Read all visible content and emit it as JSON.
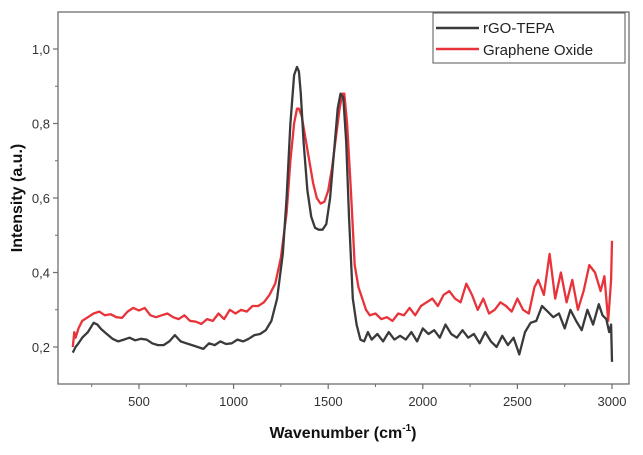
{
  "chart_data": {
    "type": "line",
    "title": "",
    "xlabel": "Wavenumber (cm",
    "xlabel_superscript": "-1",
    "xlabel_suffix": ")",
    "ylabel": "Intensity (a.u.)",
    "xlim": [
      155,
      3060
    ],
    "ylim": [
      0.1,
      1.1
    ],
    "xticks": [
      500,
      1000,
      1500,
      2000,
      2500,
      3000
    ],
    "xtick_labels": [
      "500",
      "1000",
      "1500",
      "2000",
      "2500",
      "3000"
    ],
    "yticks": [
      0.2,
      0.4,
      0.6,
      0.8,
      1.0
    ],
    "ytick_labels": [
      "0,2",
      "0,4",
      "0,6",
      "0,8",
      "1,0"
    ],
    "grid": false,
    "legend_position": "top-right",
    "series": [
      {
        "name": "rGO-TEPA",
        "color": "#3a3a3a",
        "x": [
          150,
          165,
          180,
          200,
          230,
          260,
          280,
          300,
          330,
          360,
          390,
          420,
          450,
          480,
          510,
          540,
          570,
          600,
          630,
          660,
          690,
          720,
          750,
          780,
          810,
          840,
          870,
          900,
          930,
          960,
          990,
          1020,
          1050,
          1080,
          1110,
          1140,
          1170,
          1200,
          1230,
          1260,
          1280,
          1300,
          1320,
          1335,
          1345,
          1355,
          1370,
          1390,
          1410,
          1430,
          1450,
          1470,
          1490,
          1510,
          1530,
          1550,
          1565,
          1580,
          1595,
          1610,
          1630,
          1650,
          1670,
          1690,
          1710,
          1730,
          1760,
          1790,
          1820,
          1850,
          1880,
          1910,
          1940,
          1970,
          2000,
          2030,
          2060,
          2090,
          2120,
          2150,
          2180,
          2210,
          2240,
          2270,
          2300,
          2330,
          2360,
          2390,
          2420,
          2450,
          2480,
          2510,
          2540,
          2570,
          2600,
          2630,
          2660,
          2690,
          2720,
          2750,
          2780,
          2810,
          2840,
          2870,
          2900,
          2930,
          2950,
          2970,
          2985,
          2995,
          3000
        ],
        "y": [
          0.185,
          0.2,
          0.21,
          0.225,
          0.24,
          0.265,
          0.26,
          0.248,
          0.235,
          0.222,
          0.215,
          0.22,
          0.225,
          0.218,
          0.222,
          0.22,
          0.21,
          0.205,
          0.205,
          0.215,
          0.232,
          0.215,
          0.21,
          0.205,
          0.2,
          0.195,
          0.21,
          0.205,
          0.215,
          0.208,
          0.21,
          0.22,
          0.215,
          0.222,
          0.232,
          0.235,
          0.245,
          0.27,
          0.33,
          0.45,
          0.6,
          0.8,
          0.93,
          0.952,
          0.94,
          0.88,
          0.75,
          0.62,
          0.55,
          0.52,
          0.515,
          0.515,
          0.53,
          0.6,
          0.72,
          0.84,
          0.88,
          0.87,
          0.75,
          0.55,
          0.33,
          0.26,
          0.22,
          0.215,
          0.24,
          0.22,
          0.235,
          0.215,
          0.24,
          0.22,
          0.23,
          0.22,
          0.24,
          0.215,
          0.25,
          0.235,
          0.245,
          0.225,
          0.26,
          0.235,
          0.225,
          0.245,
          0.225,
          0.235,
          0.21,
          0.24,
          0.215,
          0.2,
          0.23,
          0.205,
          0.225,
          0.18,
          0.24,
          0.265,
          0.27,
          0.31,
          0.295,
          0.28,
          0.29,
          0.25,
          0.3,
          0.27,
          0.245,
          0.3,
          0.26,
          0.315,
          0.285,
          0.275,
          0.24,
          0.26,
          0.16
        ]
      },
      {
        "name": "Graphene Oxide",
        "color": "#e8333a",
        "x": [
          150,
          158,
          165,
          180,
          200,
          230,
          260,
          290,
          320,
          350,
          380,
          410,
          440,
          470,
          500,
          530,
          560,
          590,
          620,
          650,
          680,
          710,
          740,
          770,
          800,
          830,
          860,
          890,
          920,
          950,
          980,
          1010,
          1040,
          1070,
          1100,
          1130,
          1160,
          1190,
          1220,
          1250,
          1280,
          1300,
          1320,
          1335,
          1345,
          1360,
          1380,
          1400,
          1420,
          1440,
          1460,
          1480,
          1500,
          1520,
          1540,
          1560,
          1575,
          1585,
          1600,
          1620,
          1640,
          1660,
          1680,
          1700,
          1720,
          1750,
          1780,
          1810,
          1840,
          1870,
          1900,
          1930,
          1960,
          1990,
          2020,
          2050,
          2080,
          2110,
          2140,
          2170,
          2200,
          2230,
          2260,
          2290,
          2320,
          2350,
          2380,
          2410,
          2440,
          2470,
          2500,
          2530,
          2560,
          2590,
          2610,
          2640,
          2670,
          2700,
          2730,
          2760,
          2790,
          2820,
          2850,
          2880,
          2910,
          2940,
          2960,
          2980,
          2995,
          3000
        ],
        "y": [
          0.2,
          0.24,
          0.225,
          0.25,
          0.27,
          0.28,
          0.29,
          0.295,
          0.285,
          0.288,
          0.28,
          0.278,
          0.295,
          0.305,
          0.298,
          0.305,
          0.285,
          0.28,
          0.285,
          0.29,
          0.28,
          0.275,
          0.285,
          0.27,
          0.268,
          0.262,
          0.275,
          0.27,
          0.29,
          0.275,
          0.3,
          0.29,
          0.3,
          0.295,
          0.31,
          0.31,
          0.32,
          0.34,
          0.37,
          0.44,
          0.56,
          0.7,
          0.8,
          0.84,
          0.84,
          0.82,
          0.76,
          0.7,
          0.64,
          0.6,
          0.585,
          0.59,
          0.62,
          0.68,
          0.76,
          0.84,
          0.88,
          0.88,
          0.8,
          0.62,
          0.42,
          0.36,
          0.33,
          0.3,
          0.285,
          0.29,
          0.275,
          0.28,
          0.27,
          0.29,
          0.285,
          0.305,
          0.285,
          0.31,
          0.32,
          0.33,
          0.31,
          0.34,
          0.35,
          0.33,
          0.32,
          0.37,
          0.34,
          0.3,
          0.33,
          0.29,
          0.3,
          0.32,
          0.31,
          0.295,
          0.33,
          0.3,
          0.29,
          0.36,
          0.38,
          0.34,
          0.45,
          0.33,
          0.4,
          0.32,
          0.38,
          0.3,
          0.35,
          0.42,
          0.4,
          0.35,
          0.39,
          0.27,
          0.38,
          0.485
        ]
      }
    ]
  }
}
